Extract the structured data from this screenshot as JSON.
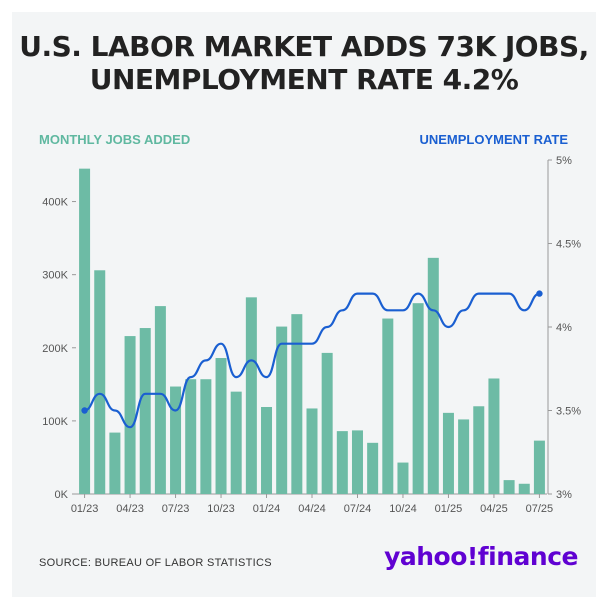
{
  "title_line1": "U.S. LABOR MARKET ADDS 73K JOBS,",
  "title_line2": "UNEMPLOYMENT RATE 4.2%",
  "left_axis_label": "MONTHLY JOBS ADDED",
  "right_axis_label": "UNEMPLOYMENT RATE",
  "source": "SOURCE: BUREAU OF LABOR STATISTICS",
  "logo": "yahoo!finance",
  "colors": {
    "bars": "#6dbba5",
    "line": "#1a5fd1",
    "left_label": "#5fb8a0",
    "right_label": "#1a5fd1",
    "logo": "#6001d2"
  },
  "chart_data": {
    "type": "bar",
    "categories": [
      "01/23",
      "02/23",
      "03/23",
      "04/23",
      "05/23",
      "06/23",
      "07/23",
      "08/23",
      "09/23",
      "10/23",
      "11/23",
      "12/23",
      "01/24",
      "02/24",
      "03/24",
      "04/24",
      "05/24",
      "06/24",
      "07/24",
      "08/24",
      "09/24",
      "10/24",
      "11/24",
      "12/24",
      "01/25",
      "02/25",
      "03/25",
      "04/25",
      "05/25",
      "06/25",
      "07/25"
    ],
    "x_tick_labels": [
      "01/23",
      "04/23",
      "07/23",
      "10/23",
      "01/24",
      "04/24",
      "07/24",
      "10/24",
      "01/25",
      "04/25",
      "07/25"
    ],
    "series": [
      {
        "name": "MONTHLY JOBS ADDED",
        "axis": "left",
        "values": [
          445000,
          306000,
          84000,
          216000,
          227000,
          257000,
          147000,
          157000,
          157000,
          186000,
          140000,
          269000,
          119000,
          229000,
          246000,
          117000,
          193000,
          86000,
          87000,
          70000,
          240000,
          43000,
          261000,
          323000,
          111000,
          102000,
          120000,
          158000,
          19000,
          14000,
          73000
        ]
      },
      {
        "name": "UNEMPLOYMENT RATE",
        "axis": "right",
        "type": "line",
        "values": [
          3.5,
          3.6,
          3.5,
          3.4,
          3.6,
          3.6,
          3.5,
          3.7,
          3.8,
          3.9,
          3.7,
          3.8,
          3.7,
          3.9,
          3.9,
          3.9,
          4.0,
          4.1,
          4.2,
          4.2,
          4.1,
          4.1,
          4.2,
          4.1,
          4.0,
          4.1,
          4.2,
          4.2,
          4.2,
          4.1,
          4.2
        ]
      }
    ],
    "left_axis": {
      "ylim": [
        0,
        450000
      ],
      "ticks": [
        0,
        100000,
        200000,
        300000,
        400000
      ],
      "tick_labels": [
        "0K",
        "100K",
        "200K",
        "300K",
        "400K"
      ]
    },
    "right_axis": {
      "ylim": [
        3.0,
        5.0
      ],
      "ticks": [
        3.0,
        3.5,
        4.0,
        4.5,
        5.0
      ],
      "tick_labels": [
        "3%",
        "3.5%",
        "4%",
        "4.5%",
        "5%"
      ]
    },
    "grid": false
  }
}
